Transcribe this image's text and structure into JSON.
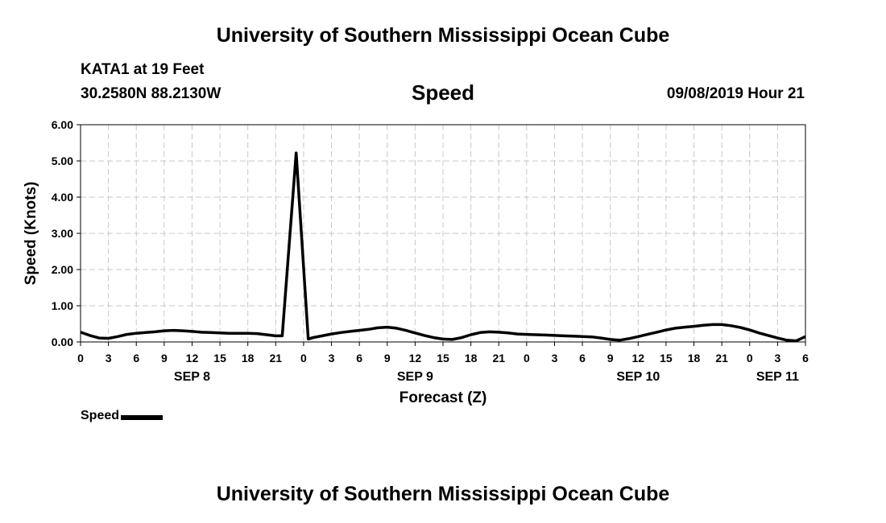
{
  "header": {
    "top_title": "University of Southern Mississippi Ocean Cube",
    "station": "KATA1 at 19 Feet",
    "coords": "30.2580N 88.2130W",
    "variable": "Speed",
    "run_time": "09/08/2019 Hour 21"
  },
  "footer": {
    "bottom_title": "University of Southern Mississippi Ocean Cube"
  },
  "legend": {
    "label": "Speed",
    "color": "#000000"
  },
  "chart_data": {
    "type": "line",
    "title": "Speed",
    "xlabel": "Forecast (Z)",
    "ylabel": "Speed (Knots)",
    "x_unit": "hours from SEP 8 00Z",
    "xlim": [
      0,
      78
    ],
    "ylim": [
      0,
      6
    ],
    "grid": true,
    "y_ticks": [
      "0.00",
      "1.00",
      "2.00",
      "3.00",
      "4.00",
      "5.00",
      "6.00"
    ],
    "x_ticks": [
      {
        "h": 0,
        "label": "0"
      },
      {
        "h": 3,
        "label": "3"
      },
      {
        "h": 6,
        "label": "6"
      },
      {
        "h": 9,
        "label": "9"
      },
      {
        "h": 12,
        "label": "12"
      },
      {
        "h": 15,
        "label": "15"
      },
      {
        "h": 18,
        "label": "18"
      },
      {
        "h": 21,
        "label": "21"
      },
      {
        "h": 24,
        "label": "0"
      },
      {
        "h": 27,
        "label": "3"
      },
      {
        "h": 30,
        "label": "6"
      },
      {
        "h": 33,
        "label": "9"
      },
      {
        "h": 36,
        "label": "12"
      },
      {
        "h": 39,
        "label": "15"
      },
      {
        "h": 42,
        "label": "18"
      },
      {
        "h": 45,
        "label": "21"
      },
      {
        "h": 48,
        "label": "0"
      },
      {
        "h": 51,
        "label": "3"
      },
      {
        "h": 54,
        "label": "6"
      },
      {
        "h": 57,
        "label": "9"
      },
      {
        "h": 60,
        "label": "12"
      },
      {
        "h": 63,
        "label": "15"
      },
      {
        "h": 66,
        "label": "18"
      },
      {
        "h": 69,
        "label": "21"
      },
      {
        "h": 72,
        "label": "0"
      },
      {
        "h": 75,
        "label": "3"
      },
      {
        "h": 78,
        "label": "6"
      }
    ],
    "day_labels": [
      {
        "h": 12,
        "label": "SEP 8"
      },
      {
        "h": 36,
        "label": "SEP 9"
      },
      {
        "h": 60,
        "label": "SEP 10"
      },
      {
        "h": 75,
        "label": "SEP 11"
      }
    ],
    "series": [
      {
        "name": "Speed",
        "color": "#000000",
        "points": [
          [
            0,
            0.27
          ],
          [
            1,
            0.18
          ],
          [
            2,
            0.11
          ],
          [
            3,
            0.1
          ],
          [
            4,
            0.15
          ],
          [
            5,
            0.21
          ],
          [
            6,
            0.24
          ],
          [
            7,
            0.26
          ],
          [
            8,
            0.28
          ],
          [
            9,
            0.31
          ],
          [
            10,
            0.32
          ],
          [
            11,
            0.31
          ],
          [
            12,
            0.29
          ],
          [
            13,
            0.27
          ],
          [
            14,
            0.26
          ],
          [
            15,
            0.25
          ],
          [
            16,
            0.24
          ],
          [
            17,
            0.24
          ],
          [
            18,
            0.24
          ],
          [
            19,
            0.23
          ],
          [
            20,
            0.2
          ],
          [
            21,
            0.17
          ],
          [
            21.7,
            0.17
          ],
          [
            23.2,
            5.22
          ],
          [
            24.5,
            0.08
          ],
          [
            25,
            0.12
          ],
          [
            26,
            0.17
          ],
          [
            27,
            0.22
          ],
          [
            28,
            0.26
          ],
          [
            29,
            0.29
          ],
          [
            30,
            0.32
          ],
          [
            31,
            0.35
          ],
          [
            32,
            0.39
          ],
          [
            33,
            0.41
          ],
          [
            34,
            0.38
          ],
          [
            35,
            0.32
          ],
          [
            36,
            0.25
          ],
          [
            37,
            0.18
          ],
          [
            38,
            0.12
          ],
          [
            39,
            0.08
          ],
          [
            40,
            0.07
          ],
          [
            41,
            0.12
          ],
          [
            42,
            0.2
          ],
          [
            43,
            0.26
          ],
          [
            44,
            0.28
          ],
          [
            45,
            0.27
          ],
          [
            46,
            0.25
          ],
          [
            47,
            0.22
          ],
          [
            48,
            0.21
          ],
          [
            49,
            0.2
          ],
          [
            50,
            0.19
          ],
          [
            51,
            0.18
          ],
          [
            52,
            0.17
          ],
          [
            53,
            0.16
          ],
          [
            54,
            0.15
          ],
          [
            55,
            0.14
          ],
          [
            56,
            0.11
          ],
          [
            57,
            0.07
          ],
          [
            58,
            0.05
          ],
          [
            59,
            0.09
          ],
          [
            60,
            0.15
          ],
          [
            61,
            0.21
          ],
          [
            62,
            0.27
          ],
          [
            63,
            0.33
          ],
          [
            64,
            0.38
          ],
          [
            65,
            0.41
          ],
          [
            66,
            0.43
          ],
          [
            67,
            0.46
          ],
          [
            68,
            0.48
          ],
          [
            69,
            0.48
          ],
          [
            70,
            0.45
          ],
          [
            71,
            0.4
          ],
          [
            72,
            0.33
          ],
          [
            73,
            0.25
          ],
          [
            74,
            0.18
          ],
          [
            75,
            0.11
          ],
          [
            76,
            0.05
          ],
          [
            77,
            0.03
          ],
          [
            78,
            0.15
          ]
        ]
      }
    ]
  }
}
